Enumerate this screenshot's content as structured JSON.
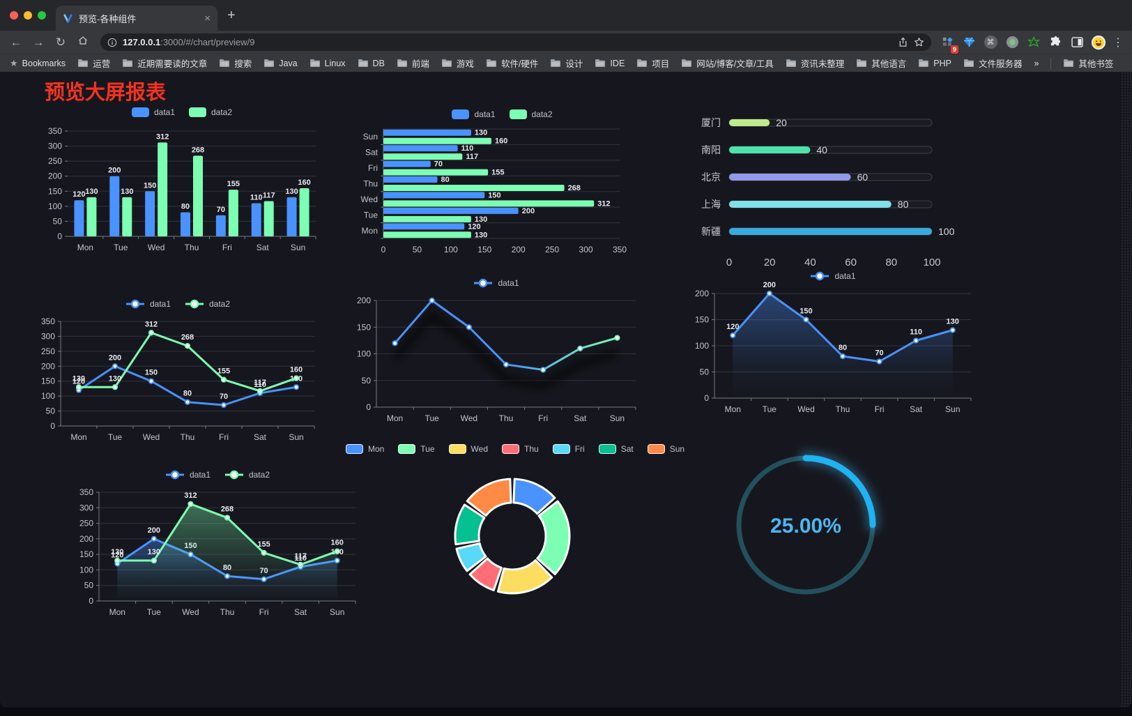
{
  "browser": {
    "tab": {
      "title": "预览-各种组件",
      "close_label": "×"
    },
    "new_tab_label": "+",
    "nav": {
      "back": "←",
      "forward": "→",
      "reload": "↻"
    },
    "url": {
      "host": "127.0.0.1",
      "rest": ":3000/#/chart/preview/9"
    },
    "extension_badge": "9",
    "menu_label": "⋮",
    "bookmarks_bar": {
      "bookmarks_label": "Bookmarks",
      "folders": [
        "运营",
        "近期需要读的文章",
        "搜索",
        "Java",
        "Linux",
        "DB",
        "前端",
        "游戏",
        "软件/硬件",
        "设计",
        "IDE",
        "项目",
        "网站/博客/文章/工具",
        "资讯未整理",
        "其他语言",
        "PHP",
        "文件服务器"
      ],
      "overflow_label": "»",
      "other_bookmarks_label": "其他书签"
    }
  },
  "page": {
    "title": "预览大屏报表",
    "title_color": "#f5321f",
    "background": "#16171e"
  },
  "chart_data": [
    {
      "type": "bar",
      "legend": [
        "data1",
        "data2"
      ],
      "categories": [
        "Mon",
        "Tue",
        "Wed",
        "Thu",
        "Fri",
        "Sat",
        "Sun"
      ],
      "series": [
        {
          "name": "data1",
          "color": "#4992ff",
          "values": [
            120,
            200,
            150,
            80,
            70,
            110,
            130
          ]
        },
        {
          "name": "data2",
          "color": "#7cffb2",
          "values": [
            130,
            130,
            312,
            268,
            155,
            117,
            160
          ]
        }
      ],
      "ylim": [
        0,
        350
      ],
      "ytick_step": 50,
      "value_labels": true,
      "grid": true,
      "legend_position": "top"
    },
    {
      "type": "hbar",
      "legend": [
        "data1",
        "data2"
      ],
      "categories": [
        "Mon",
        "Tue",
        "Wed",
        "Thu",
        "Fri",
        "Sat",
        "Sun"
      ],
      "category_order": "bottom-to-top",
      "series": [
        {
          "name": "data1",
          "color": "#4992ff",
          "values": [
            120,
            200,
            150,
            80,
            70,
            110,
            130
          ]
        },
        {
          "name": "data2",
          "color": "#7cffb2",
          "values": [
            130,
            130,
            312,
            268,
            155,
            117,
            160
          ]
        }
      ],
      "xlim": [
        0,
        350
      ],
      "xtick_step": 50,
      "value_labels": true,
      "legend_position": "top"
    },
    {
      "type": "progress",
      "max": 100,
      "xticks": [
        0,
        20,
        40,
        60,
        80,
        100
      ],
      "rows": [
        {
          "label": "厦门",
          "value": 20,
          "color": "#bfe98c"
        },
        {
          "label": "南阳",
          "value": 40,
          "color": "#4ee2ae"
        },
        {
          "label": "北京",
          "value": 60,
          "color": "#9399e6"
        },
        {
          "label": "上海",
          "value": 80,
          "color": "#80dfe8"
        },
        {
          "label": "新疆",
          "value": 100,
          "color": "#3aa9dd"
        }
      ]
    },
    {
      "type": "line",
      "legend": [
        "data1",
        "data2"
      ],
      "categories": [
        "Mon",
        "Tue",
        "Wed",
        "Thu",
        "Fri",
        "Sat",
        "Sun"
      ],
      "series": [
        {
          "name": "data1",
          "color": "#4992ff",
          "values": [
            120,
            200,
            150,
            80,
            70,
            110,
            130
          ]
        },
        {
          "name": "data2",
          "color": "#7cffb2",
          "values": [
            130,
            130,
            312,
            268,
            155,
            117,
            160
          ]
        }
      ],
      "ylim": [
        0,
        350
      ],
      "ytick_step": 50,
      "value_labels": true,
      "markers": true,
      "legend_position": "top"
    },
    {
      "type": "line",
      "legend": [
        "data1"
      ],
      "categories": [
        "Mon",
        "Tue",
        "Wed",
        "Thu",
        "Fri",
        "Sat",
        "Sun"
      ],
      "series": [
        {
          "name": "data1",
          "gradient": [
            "#4992ff",
            "#7cffb2"
          ],
          "values": [
            120,
            200,
            150,
            80,
            70,
            110,
            130
          ],
          "shadow": true
        }
      ],
      "ylim": [
        0,
        200
      ],
      "ytick_step": 50,
      "value_labels": false,
      "markers": true,
      "legend_position": "top"
    },
    {
      "type": "line",
      "legend": [
        "data1"
      ],
      "categories": [
        "Mon",
        "Tue",
        "Wed",
        "Thu",
        "Fri",
        "Sat",
        "Sun"
      ],
      "series": [
        {
          "name": "data1",
          "color": "#4992ff",
          "values": [
            120,
            200,
            150,
            80,
            70,
            110,
            130
          ],
          "area": true
        }
      ],
      "ylim": [
        0,
        200
      ],
      "ytick_step": 50,
      "value_labels": true,
      "markers": true,
      "legend_position": "top"
    },
    {
      "type": "line",
      "legend": [
        "data1",
        "data2"
      ],
      "categories": [
        "Mon",
        "Tue",
        "Wed",
        "Thu",
        "Fri",
        "Sat",
        "Sun"
      ],
      "series": [
        {
          "name": "data1",
          "color": "#4992ff",
          "values": [
            120,
            200,
            150,
            80,
            70,
            110,
            130
          ],
          "area": true
        },
        {
          "name": "data2",
          "color": "#7cffb2",
          "values": [
            130,
            130,
            312,
            268,
            155,
            117,
            160
          ],
          "area": true
        }
      ],
      "ylim": [
        0,
        350
      ],
      "ytick_step": 50,
      "value_labels": true,
      "markers": true,
      "legend_position": "top"
    },
    {
      "type": "donut",
      "legend": [
        "Mon",
        "Tue",
        "Wed",
        "Thu",
        "Fri",
        "Sat",
        "Sun"
      ],
      "categories": [
        "Mon",
        "Tue",
        "Wed",
        "Thu",
        "Fri",
        "Sat",
        "Sun"
      ],
      "values": [
        120,
        200,
        150,
        80,
        70,
        110,
        130
      ],
      "colors": [
        "#4992ff",
        "#7cffb2",
        "#fddd60",
        "#ff6e76",
        "#58d9f9",
        "#05c091",
        "#ff8a45"
      ],
      "inner_radius": 48,
      "outer_radius": 82,
      "legend_position": "top"
    },
    {
      "type": "gauge",
      "percent": 25,
      "label": "25.00%",
      "color": "#1fb3f2",
      "track_color": "#23505d",
      "text_color": "#4ab8f2"
    }
  ]
}
